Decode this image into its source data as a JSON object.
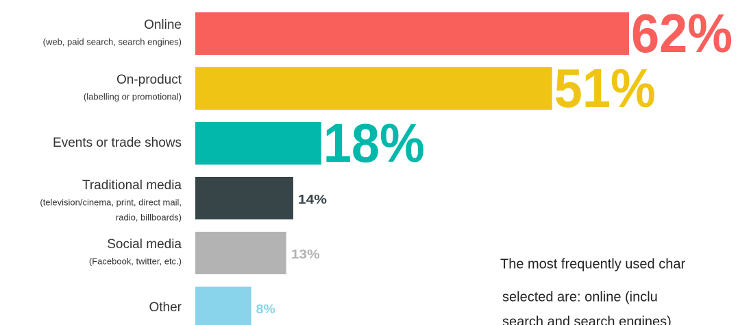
{
  "chart_data": {
    "type": "bar",
    "categories": [
      "Online",
      "On-product",
      "Events or trade shows",
      "Traditional media",
      "Social media",
      "Other"
    ],
    "sublabels": [
      [
        "(web, paid search, search engines)"
      ],
      [
        "(labelling or promotional)"
      ],
      [],
      [
        "(television/cinema, print, direct mail,",
        "radio, billboards)"
      ],
      [
        "(Facebook, twitter, etc.)"
      ],
      []
    ],
    "values": [
      62,
      51,
      18,
      14,
      13,
      8
    ],
    "value_labels": [
      "62%",
      "51%",
      "18%",
      "14%",
      "13%",
      "8%"
    ],
    "colors": [
      "#f9605c",
      "#f0c414",
      "#02b8ab",
      "#374548",
      "#b3b3b3",
      "#8ad4eb"
    ],
    "note": [
      "The most frequently used char",
      "selected are: online (inclu",
      "search and search engines)"
    ]
  }
}
